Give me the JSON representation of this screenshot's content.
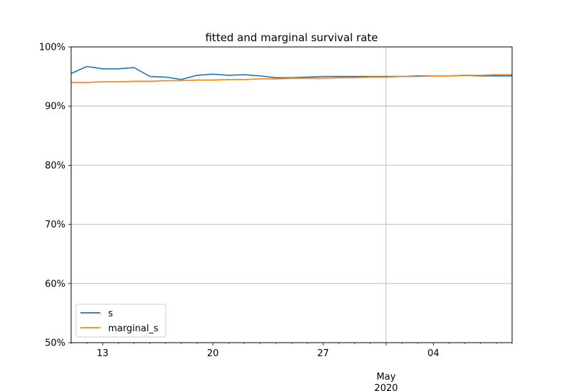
{
  "chart_data": {
    "type": "line",
    "title": "fitted and marginal survival rate",
    "xlabel": "",
    "ylabel": "",
    "x_range": [
      "2020-04-11",
      "2020-05-09"
    ],
    "ylim": [
      0.5,
      1.0
    ],
    "y_ticks": [
      {
        "value": 0.5,
        "label": "50%"
      },
      {
        "value": 0.6,
        "label": "60%"
      },
      {
        "value": 0.7,
        "label": "70%"
      },
      {
        "value": 0.8,
        "label": "80%"
      },
      {
        "value": 0.9,
        "label": "90%"
      },
      {
        "value": 1.0,
        "label": "100%"
      }
    ],
    "x_major_ticks": [
      {
        "date": "2020-04-13",
        "label": "13"
      },
      {
        "date": "2020-04-20",
        "label": "20"
      },
      {
        "date": "2020-04-27",
        "label": "27"
      },
      {
        "date": "2020-05-04",
        "label": "04"
      }
    ],
    "x_month_label": {
      "date": "2020-05-01",
      "label": "May",
      "sublabel": "2020"
    },
    "grid": {
      "y": true,
      "x_dates": [
        "2020-05-01"
      ]
    },
    "legend": {
      "placement": "lower-left"
    },
    "x": [
      "2020-04-11",
      "2020-04-12",
      "2020-04-13",
      "2020-04-14",
      "2020-04-15",
      "2020-04-16",
      "2020-04-17",
      "2020-04-18",
      "2020-04-19",
      "2020-04-20",
      "2020-04-21",
      "2020-04-22",
      "2020-04-23",
      "2020-04-24",
      "2020-04-25",
      "2020-04-26",
      "2020-04-27",
      "2020-04-28",
      "2020-04-29",
      "2020-04-30",
      "2020-05-01",
      "2020-05-02",
      "2020-05-03",
      "2020-05-04",
      "2020-05-05",
      "2020-05-06",
      "2020-05-07",
      "2020-05-08",
      "2020-05-09"
    ],
    "series": [
      {
        "name": "s",
        "color": "#1f77b4",
        "values": [
          0.955,
          0.967,
          0.963,
          0.963,
          0.965,
          0.95,
          0.949,
          0.945,
          0.952,
          0.954,
          0.952,
          0.953,
          0.951,
          0.948,
          0.948,
          0.949,
          0.95,
          0.95,
          0.95,
          0.95,
          0.95,
          0.95,
          0.951,
          0.951,
          0.951,
          0.952,
          0.951,
          0.951,
          0.951
        ]
      },
      {
        "name": "marginal_s",
        "color": "#ff7f0e",
        "values": [
          0.94,
          0.94,
          0.941,
          0.941,
          0.942,
          0.942,
          0.943,
          0.943,
          0.944,
          0.944,
          0.945,
          0.945,
          0.946,
          0.946,
          0.947,
          0.947,
          0.947,
          0.948,
          0.948,
          0.949,
          0.949,
          0.95,
          0.95,
          0.951,
          0.951,
          0.952,
          0.952,
          0.953,
          0.953
        ]
      }
    ]
  }
}
